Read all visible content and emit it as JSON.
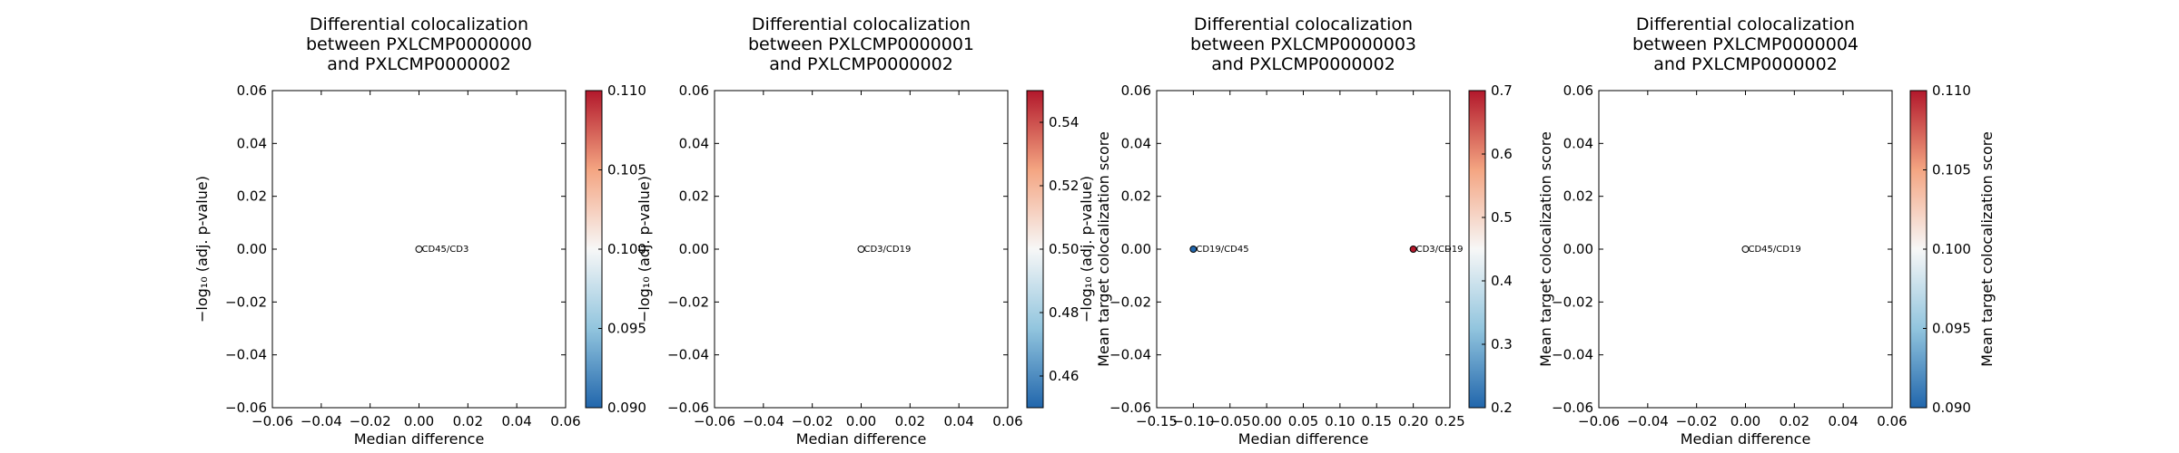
{
  "chart_data": [
    {
      "type": "scatter",
      "title": [
        "Differential colocalization",
        "between PXLCMP0000000",
        "and PXLCMP0000002"
      ],
      "xlabel": "Median difference",
      "ylabel": "−log₁₀ (adj. p-value)",
      "colorbar_label": "",
      "xlim": [
        -0.06,
        0.06
      ],
      "ylim": [
        -0.06,
        0.06
      ],
      "xticks": [
        -0.06,
        -0.04,
        -0.02,
        0.0,
        0.02,
        0.04,
        0.06
      ],
      "yticks": [
        -0.06,
        -0.04,
        -0.02,
        0.0,
        0.02,
        0.04,
        0.06
      ],
      "cbar_range": [
        0.09,
        0.11
      ],
      "cbar_ticks": [
        0.09,
        0.095,
        0.1,
        0.105,
        0.11
      ],
      "points": [
        {
          "label": "CD45/CD3",
          "x": 0.0,
          "y": 0.0,
          "color_value": 0.1
        }
      ]
    },
    {
      "type": "scatter",
      "title": [
        "Differential colocalization",
        "between PXLCMP0000001",
        "and PXLCMP0000002"
      ],
      "xlabel": "Median difference",
      "ylabel": "−log₁₀ (adj. p-value)",
      "colorbar_label": "Mean target colocalization score",
      "xlim": [
        -0.06,
        0.06
      ],
      "ylim": [
        -0.06,
        0.06
      ],
      "xticks": [
        -0.06,
        -0.04,
        -0.02,
        0.0,
        0.02,
        0.04,
        0.06
      ],
      "yticks": [
        -0.06,
        -0.04,
        -0.02,
        0.0,
        0.02,
        0.04,
        0.06
      ],
      "cbar_range": [
        0.45,
        0.55
      ],
      "cbar_ticks": [
        0.46,
        0.48,
        0.5,
        0.52,
        0.54
      ],
      "points": [
        {
          "label": "CD3/CD19",
          "x": 0.0,
          "y": 0.0,
          "color_value": 0.5
        }
      ]
    },
    {
      "type": "scatter",
      "title": [
        "Differential colocalization",
        "between PXLCMP0000003",
        "and PXLCMP0000002"
      ],
      "xlabel": "Median difference",
      "ylabel": "−log₁₀ (adj. p-value)",
      "colorbar_label": "Mean target colocalization score",
      "xlim": [
        -0.15,
        0.25
      ],
      "ylim": [
        -0.06,
        0.06
      ],
      "xticks": [
        -0.15,
        -0.1,
        -0.05,
        0.0,
        0.05,
        0.1,
        0.15,
        0.2,
        0.25
      ],
      "yticks": [
        -0.06,
        -0.04,
        -0.02,
        0.0,
        0.02,
        0.04,
        0.06
      ],
      "cbar_range": [
        0.2,
        0.7
      ],
      "cbar_ticks": [
        0.2,
        0.3,
        0.4,
        0.5,
        0.6,
        0.7
      ],
      "points": [
        {
          "label": "CD19/CD45",
          "x": -0.1,
          "y": 0.0,
          "color_value": 0.2
        },
        {
          "label": "CD3/CD19",
          "x": 0.2,
          "y": 0.0,
          "color_value": 0.7
        }
      ]
    },
    {
      "type": "scatter",
      "title": [
        "Differential colocalization",
        "between PXLCMP0000004",
        "and PXLCMP0000002"
      ],
      "xlabel": "Median difference",
      "ylabel": "",
      "colorbar_label": "Mean target colocalization score",
      "xlim": [
        -0.06,
        0.06
      ],
      "ylim": [
        -0.06,
        0.06
      ],
      "xticks": [
        -0.06,
        -0.04,
        -0.02,
        0.0,
        0.02,
        0.04,
        0.06
      ],
      "yticks": [
        -0.06,
        -0.04,
        -0.02,
        0.0,
        0.02,
        0.04,
        0.06
      ],
      "cbar_range": [
        0.09,
        0.11
      ],
      "cbar_ticks": [
        0.09,
        0.095,
        0.1,
        0.105,
        0.11
      ],
      "points": [
        {
          "label": "CD45/CD19",
          "x": 0.0,
          "y": 0.0,
          "color_value": 0.1
        }
      ]
    }
  ]
}
